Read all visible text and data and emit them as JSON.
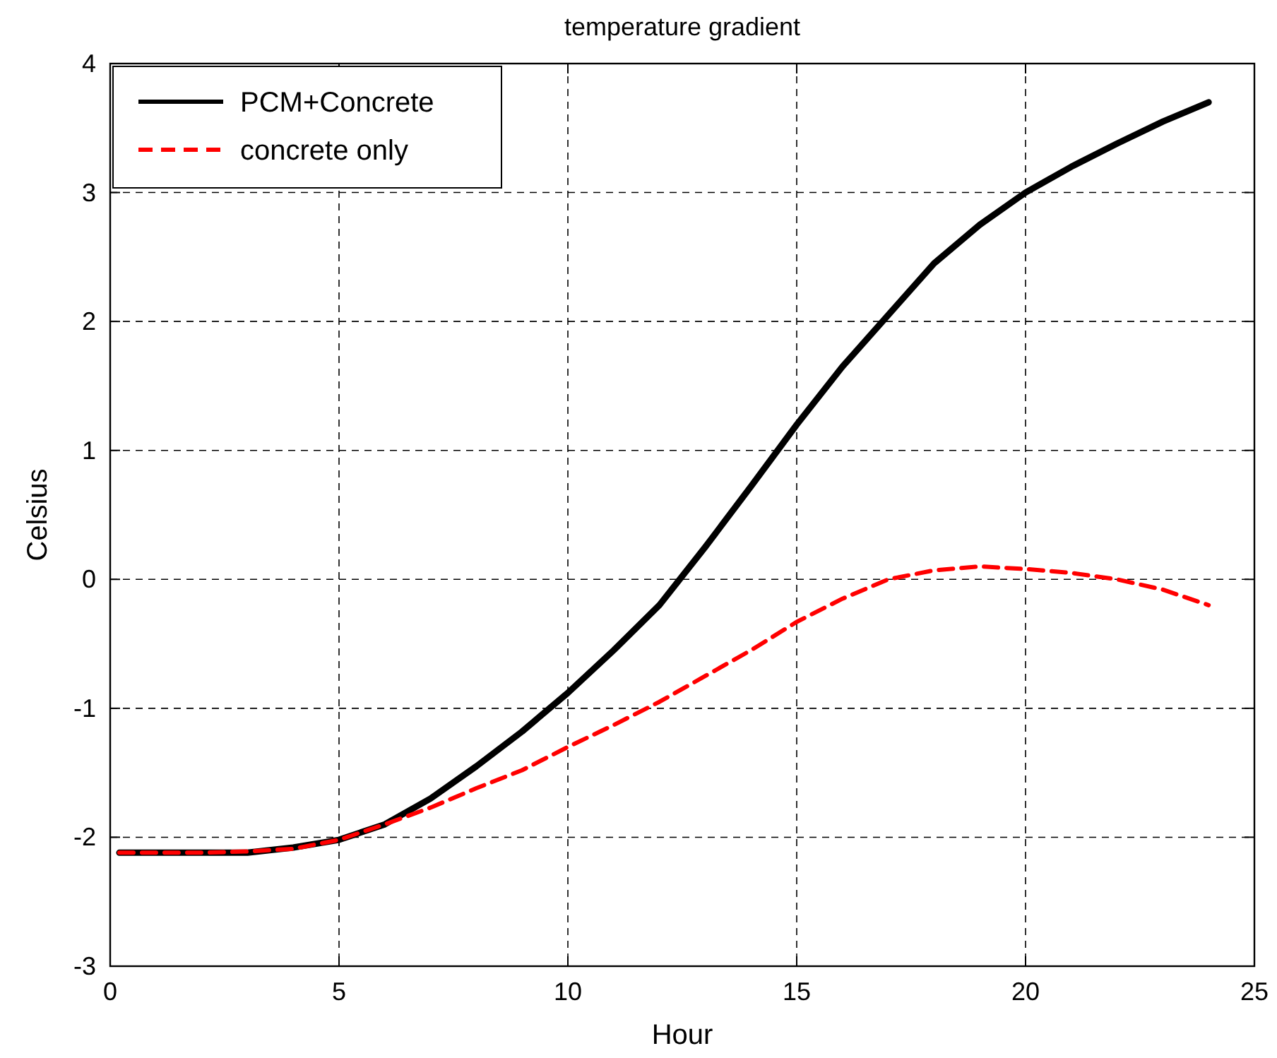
{
  "chart_data": {
    "type": "line",
    "title": "temperature gradient",
    "xlabel": "Hour",
    "ylabel": "Celsius",
    "x": [
      0.2,
      1,
      2,
      3,
      4,
      5,
      6,
      7,
      8,
      9,
      10,
      11,
      12,
      13,
      14,
      15,
      16,
      17,
      18,
      19,
      20,
      21,
      22,
      23,
      24
    ],
    "series": [
      {
        "name": "PCM+Concrete",
        "color": "#000000",
        "line_style": "solid",
        "values": [
          -2.12,
          -2.12,
          -2.12,
          -2.12,
          -2.08,
          -2.02,
          -1.9,
          -1.7,
          -1.45,
          -1.18,
          -0.88,
          -0.55,
          -0.2,
          0.25,
          0.72,
          1.2,
          1.65,
          2.05,
          2.45,
          2.75,
          3.0,
          3.2,
          3.38,
          3.55,
          3.7
        ]
      },
      {
        "name": "concrete only",
        "color": "#ff0000",
        "line_style": "dashed",
        "values": [
          -2.12,
          -2.12,
          -2.12,
          -2.11,
          -2.09,
          -2.02,
          -1.9,
          -1.77,
          -1.62,
          -1.48,
          -1.3,
          -1.13,
          -0.95,
          -0.75,
          -0.55,
          -0.33,
          -0.15,
          0.0,
          0.07,
          0.1,
          0.08,
          0.05,
          0.0,
          -0.08,
          -0.2
        ]
      }
    ],
    "xlim": [
      0,
      25
    ],
    "xticks": [
      0,
      5,
      10,
      15,
      20,
      25
    ],
    "ylim": [
      -3,
      4
    ],
    "yticks": [
      -3,
      -2,
      -1,
      0,
      1,
      2,
      3,
      4
    ],
    "grid": true,
    "legend": "top left",
    "marker": "none"
  }
}
